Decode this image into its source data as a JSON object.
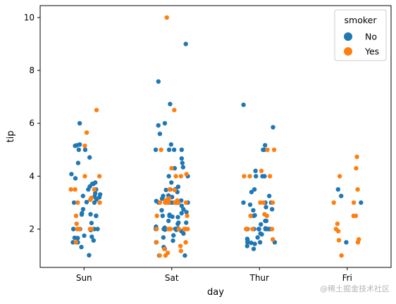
{
  "chart_data": {
    "type": "scatter",
    "xlabel": "day",
    "ylabel": "tip",
    "categories": [
      "Sun",
      "Sat",
      "Thur",
      "Fri"
    ],
    "yticks": [
      2,
      4,
      6,
      8,
      10
    ],
    "ylim": [
      0.55,
      10.45
    ],
    "legend": {
      "title": "smoker",
      "placement": "top-right",
      "entries": [
        {
          "name": "No",
          "color": "#1f77b4"
        },
        {
          "name": "Yes",
          "color": "#ff7f0e"
        }
      ]
    },
    "series": [
      {
        "name": "No",
        "color": "#1f77b4",
        "points": [
          {
            "category": "Sun",
            "values": [
              1.01,
              1.66,
              3.5,
              3.31,
              3.61,
              4.71,
              2.0,
              3.12,
              1.96,
              3.23,
              1.71,
              5.0,
              1.57,
              3.0,
              3.02,
              3.92,
              1.67,
              3.71,
              3.5,
              3.35,
              4.08,
              2.75,
              2.23,
              6.0,
              5.17,
              5.2,
              2.0,
              2.5,
              1.32,
              2.55,
              3.0,
              2.0,
              1.5,
              4.5,
              2.0,
              1.75,
              3.2,
              3.25,
              3.71,
              5.15,
              2.6,
              2.5,
              2.0,
              1.5,
              5.0,
              3.76,
              2.56
            ]
          }
        ]
      },
      {
        "name": "No",
        "color": "#1f77b4",
        "points": [
          {
            "category": "Sat",
            "values": [
              1.0,
              4.3,
              3.0,
              2.45,
              3.27,
              3.6,
              2.0,
              3.0,
              2.31,
              5.0,
              2.24,
              2.54,
              3.06,
              1.32,
              5.6,
              3.0,
              5.0,
              6.0,
              2.05,
              3.0,
              2.5,
              2.6,
              5.2,
              1.56,
              4.34,
              3.51,
              3.0,
              1.5,
              1.76,
              6.73,
              3.21,
              2.0,
              1.98,
              3.76,
              2.64,
              3.15,
              2.47,
              1.0,
              2.01,
              2.09,
              1.97,
              3.0,
              3.14,
              5.0,
              2.2,
              1.25,
              3.08,
              4.0,
              3.0,
              2.71,
              3.0,
              3.4,
              1.83,
              5.0,
              2.03,
              5.92,
              9.0,
              7.58,
              1.68,
              3.5,
              4.67,
              2.0,
              2.75,
              3.25,
              2.88,
              4.0,
              2.5,
              2.0,
              3.48,
              2.24,
              4.5,
              1.92,
              3.0
            ]
          }
        ]
      },
      {
        "name": "No",
        "color": "#1f77b4",
        "points": [
          {
            "category": "Thur",
            "values": [
              4.0,
              3.0,
              2.71,
              3.0,
              3.4,
              1.83,
              5.0,
              2.03,
              5.17,
              2.0,
              4.0,
              5.85,
              3.0,
              1.5,
              1.8,
              2.92,
              2.31,
              1.68,
              2.5,
              2.0,
              2.52,
              4.2,
              1.48,
              2.0,
              2.0,
              2.18,
              1.5,
              2.83,
              1.5,
              2.0,
              3.25,
              1.25,
              2.0,
              2.0,
              2.0,
              2.75,
              3.5,
              6.7,
              5.0,
              4.0,
              2.0,
              1.58,
              1.36,
              1.63,
              2.0,
              2.31,
              2.0,
              1.44
            ]
          }
        ]
      },
      {
        "name": "No",
        "color": "#1f77b4",
        "points": [
          {
            "category": "Fri",
            "values": [
              3.5,
              1.5,
              3.0,
              3.25
            ]
          }
        ]
      },
      {
        "name": "Yes",
        "color": "#ff7f0e",
        "points": [
          {
            "category": "Sun",
            "values": [
              3.5,
              6.5,
              2.0,
              3.0,
              3.5,
              1.5,
              5.65,
              4.0,
              2.5,
              2.0,
              3.0,
              3.5,
              2.0,
              5.15,
              3.18,
              4.0,
              3.11,
              2.0,
              2.2
            ]
          }
        ]
      },
      {
        "name": "Yes",
        "color": "#ff7f0e",
        "points": [
          {
            "category": "Sat",
            "values": [
              3.0,
              1.36,
              1.5,
              1.0,
              4.3,
              2.0,
              3.0,
              3.0,
              4.0,
              6.5,
              10.0,
              2.0,
              3.5,
              3.48,
              3.09,
              2.0,
              1.5,
              3.0,
              3.0,
              2.0,
              1.25,
              2.5,
              3.0,
              2.0,
              3.0,
              2.5,
              2.0,
              3.16,
              1.1,
              5.0,
              2.0,
              3.0,
              4.08,
              2.0,
              2.0,
              1.17,
              2.0,
              3.08,
              2.0,
              1.0,
              4.0,
              3.0
            ]
          }
        ]
      },
      {
        "name": "Yes",
        "color": "#ff7f0e",
        "points": [
          {
            "category": "Thur",
            "values": [
              3.0,
              4.2,
              2.0,
              1.61,
              5.0,
              4.0,
              2.56,
              2.0,
              4.0,
              2.5,
              5.0,
              3.0,
              2.0,
              4.0,
              2.0,
              2.5,
              3.0
            ]
          }
        ]
      },
      {
        "name": "Yes",
        "color": "#ff7f0e",
        "points": [
          {
            "category": "Fri",
            "values": [
              4.73,
              4.0,
              1.0,
              1.61,
              4.3,
              2.5,
              3.0,
              2.2,
              1.5,
              3.5,
              2.5,
              1.92,
              2.0,
              3.0,
              1.58
            ]
          }
        ]
      }
    ]
  },
  "watermark": "@稀土掘金技术社区"
}
